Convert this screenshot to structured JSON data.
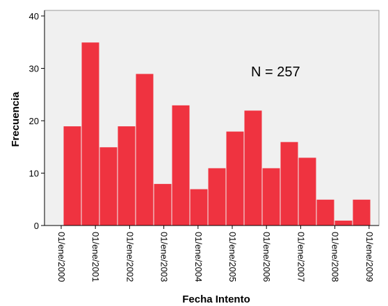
{
  "chart_data": {
    "type": "bar",
    "title": "",
    "xlabel": "Fecha Intento",
    "ylabel": "Frecuencia",
    "annotation": "N = 257",
    "ylim": [
      0,
      40
    ],
    "y_ticks": [
      "0",
      "10",
      "20",
      "30",
      "40"
    ],
    "x_tick_labels": [
      "01/ene/2000",
      "01/ene/2001",
      "01/ene/2002",
      "01/ene/2003",
      "01/ene/2004",
      "01/ene/2005",
      "01/ene/2006",
      "01/ene/2007",
      "01/ene/2008",
      "01/ene/2009"
    ],
    "values": [
      19,
      35,
      15,
      19,
      29,
      8,
      23,
      7,
      11,
      18,
      22,
      11,
      16,
      13,
      5,
      1,
      5
    ],
    "bar_color": "#ef3340",
    "plot_background": "#f0f0f0",
    "grid": false
  }
}
